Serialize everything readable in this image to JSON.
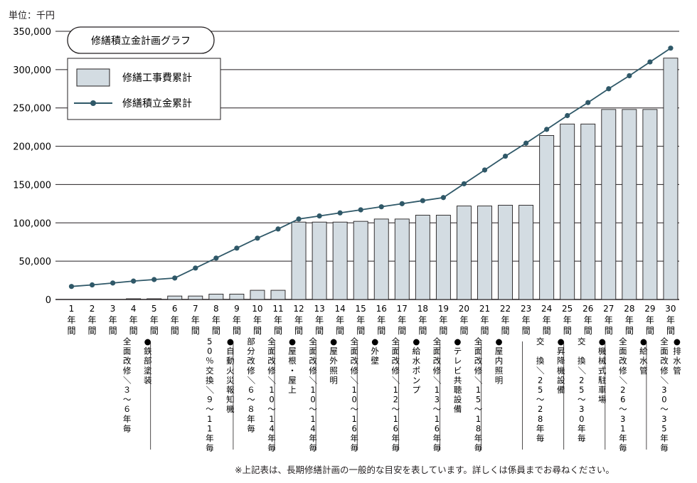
{
  "unit_label": "単位：千円",
  "footnote": "※上記表は、長期修繕計画の一般的な目安を表しています。詳しくは係員までお尋ねください。",
  "colors": {
    "bar_fill": "#d3dce2",
    "bar_stroke": "#231f20",
    "line": "#2f5868",
    "grid": "#231f20"
  },
  "chart_data": {
    "type": "bar+line",
    "title": "修繕積立金計画グラフ",
    "ylim": [
      0,
      350000
    ],
    "yticks": [
      "0",
      "50,000",
      "100,000",
      "150,000",
      "200,000",
      "250,000",
      "300,000",
      "350,000"
    ],
    "categories": [
      "1年間",
      "2年間",
      "3年間",
      "4年間",
      "5年間",
      "6年間",
      "7年間",
      "8年間",
      "9年間",
      "10年間",
      "11年間",
      "12年間",
      "13年間",
      "14年間",
      "15年間",
      "16年間",
      "17年間",
      "18年間",
      "19年間",
      "20年間",
      "21年間",
      "22年間",
      "23年間",
      "24年間",
      "25年間",
      "26年間",
      "27年間",
      "28年間",
      "29年間",
      "30年間"
    ],
    "category_numbers": [
      "1",
      "2",
      "3",
      "4",
      "5",
      "6",
      "7",
      "8",
      "9",
      "10",
      "11",
      "12",
      "13",
      "14",
      "15",
      "16",
      "17",
      "18",
      "19",
      "20",
      "21",
      "22",
      "23",
      "24",
      "25",
      "26",
      "27",
      "28",
      "29",
      "30"
    ],
    "category_suffix": "年間",
    "legend_position": "top-left",
    "series": [
      {
        "name": "修繕工事費累計",
        "kind": "bar",
        "values": [
          0,
          0,
          0,
          1000,
          1000,
          4500,
          4500,
          7000,
          7000,
          12000,
          12000,
          101000,
          101000,
          101000,
          102000,
          105000,
          105000,
          110000,
          110000,
          122000,
          122000,
          123000,
          123000,
          214000,
          229000,
          229000,
          248000,
          248000,
          248000,
          315000
        ]
      },
      {
        "name": "修繕積立金累計",
        "kind": "line",
        "values": [
          17000,
          19000,
          21500,
          24000,
          26000,
          28000,
          41000,
          54000,
          67000,
          80000,
          92000,
          105000,
          109000,
          113000,
          117000,
          121000,
          125000,
          129000,
          133000,
          151000,
          169000,
          187000,
          204000,
          222000,
          240000,
          257000,
          275000,
          292000,
          310000,
          328000
        ]
      }
    ],
    "annotations": [
      {
        "year": "4",
        "lines": [
          "全面改修／３〜６年毎"
        ]
      },
      {
        "year": "5",
        "lines": [
          "●鉄部塗装"
        ]
      },
      {
        "year": "8",
        "lines": [
          "50％交換／９〜11年毎"
        ]
      },
      {
        "year": "9",
        "lines": [
          "●自動火災報知機"
        ]
      },
      {
        "year": "10",
        "lines": [
          "部分改修／６〜８年毎"
        ]
      },
      {
        "year": "11",
        "lines": [
          "全面改修／10〜14年毎"
        ]
      },
      {
        "year": "12",
        "lines": [
          "●屋根・屋上"
        ]
      },
      {
        "year": "13",
        "lines": [
          "全面改修／10〜14年毎"
        ]
      },
      {
        "year": "14",
        "lines": [
          "●屋外照明"
        ]
      },
      {
        "year": "15",
        "lines": [
          "全面改修／10〜16年毎"
        ]
      },
      {
        "year": "16",
        "lines": [
          "●外壁"
        ]
      },
      {
        "year": "17",
        "lines": [
          "全面改修／12〜16年毎"
        ]
      },
      {
        "year": "18",
        "lines": [
          "●給水ポンプ"
        ]
      },
      {
        "year": "19",
        "lines": [
          "全面改修／13〜16年毎"
        ]
      },
      {
        "year": "20",
        "lines": [
          "●テレビ共聴設備"
        ]
      },
      {
        "year": "21",
        "lines": [
          "全面改修／15〜18年毎"
        ]
      },
      {
        "year": "22",
        "lines": [
          "●屋内照明"
        ]
      },
      {
        "year": "24",
        "lines": [
          "交　換／25〜28年毎"
        ]
      },
      {
        "year": "25",
        "lines": [
          "●昇降機設備"
        ]
      },
      {
        "year": "26",
        "lines": [
          "交　換／25〜30年毎"
        ]
      },
      {
        "year": "27",
        "lines": [
          "●機械式駐車場"
        ]
      },
      {
        "year": "28",
        "lines": [
          "全面改修／26〜31年毎"
        ]
      },
      {
        "year": "29",
        "lines": [
          "●給水管"
        ]
      },
      {
        "year": "30",
        "lines": [
          "全面改修／30〜35年毎"
        ]
      },
      {
        "year": "30b",
        "lines": [
          "●排水管"
        ]
      }
    ]
  }
}
